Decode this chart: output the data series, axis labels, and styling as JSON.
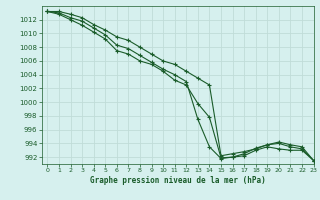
{
  "title": "Graphe pression niveau de la mer (hPa)",
  "background_color": "#d6f0ee",
  "grid_color": "#c0dcd8",
  "line_color": "#1a5c2a",
  "xlim": [
    -0.5,
    23
  ],
  "ylim": [
    991,
    1014
  ],
  "yticks": [
    992,
    994,
    996,
    998,
    1000,
    1002,
    1004,
    1006,
    1008,
    1010,
    1012
  ],
  "xticks": [
    0,
    1,
    2,
    3,
    4,
    5,
    6,
    7,
    8,
    9,
    10,
    11,
    12,
    13,
    14,
    15,
    16,
    17,
    18,
    19,
    20,
    21,
    22,
    23
  ],
  "series": [
    [
      1013.2,
      1013.2,
      1012.8,
      1012.3,
      1011.3,
      1010.5,
      1009.5,
      1009.0,
      1008.0,
      1007.0,
      1006.0,
      1005.5,
      1004.5,
      1003.5,
      1002.5,
      992.2,
      992.5,
      992.8,
      993.2,
      993.8,
      994.2,
      993.8,
      993.5,
      991.5
    ],
    [
      1013.2,
      1013.0,
      1012.3,
      1011.8,
      1010.8,
      1009.8,
      1008.3,
      1007.8,
      1006.8,
      1005.8,
      1004.8,
      1004.0,
      1003.0,
      997.5,
      993.5,
      991.8,
      992.0,
      992.2,
      993.0,
      993.5,
      993.2,
      993.0,
      993.0,
      991.5
    ],
    [
      1013.2,
      1012.8,
      1012.0,
      1011.2,
      1010.2,
      1009.2,
      1007.5,
      1007.0,
      1006.0,
      1005.5,
      1004.5,
      1003.2,
      1002.5,
      999.8,
      997.8,
      991.9,
      992.0,
      992.5,
      993.3,
      993.8,
      994.0,
      993.5,
      993.2,
      991.5
    ]
  ]
}
